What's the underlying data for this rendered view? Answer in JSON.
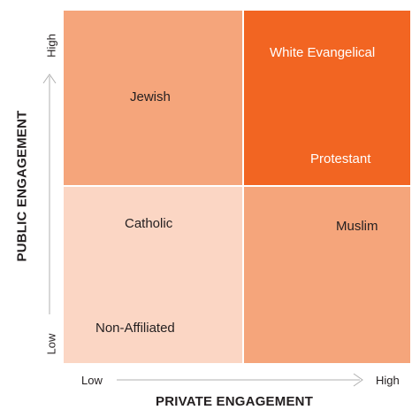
{
  "colors": {
    "low_low": "#fbd6c4",
    "low_high": "#f5a57b",
    "high_low": "#f5a57b",
    "high_high": "#f26522",
    "axis_line": "#b0b0b0"
  },
  "axes": {
    "y_title": "PUBLIC ENGAGEMENT",
    "y_low": "Low",
    "y_high": "High",
    "x_title": "PRIVATE ENGAGEMENT",
    "x_low": "Low",
    "x_high": "High"
  },
  "groups": {
    "jewish": "Jewish",
    "white_evangelical": "White Evangelical",
    "protestant": "Protestant",
    "catholic": "Catholic",
    "muslim": "Muslim",
    "non_affiliated": "Non-Affiliated"
  }
}
